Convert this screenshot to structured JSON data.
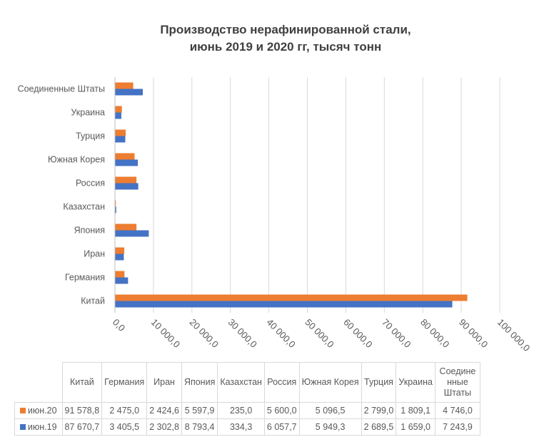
{
  "chart_data": {
    "type": "bar",
    "orientation": "horizontal",
    "title": "Производство нерафинированной стали, июнь 2019 и 2020 гг, тысяч тонн",
    "title_lines": [
      "Производство нерафинированной стали,",
      "июнь 2019 и 2020 гг, тысяч тонн"
    ],
    "categories": [
      "Китай",
      "Германия",
      "Иран",
      "Япония",
      "Казахстан",
      "Россия",
      "Южная Корея",
      "Турция",
      "Украина",
      "Соединенные Штаты"
    ],
    "table_headers": [
      "Китай",
      "Германия",
      "Иран",
      "Япония",
      "Казахстан",
      "Россия",
      "Южная Корея",
      "Турция",
      "Украина",
      "Соедине нные Штаты"
    ],
    "series": [
      {
        "name": "июн.20",
        "color": "#ed7d31",
        "values": [
          91578.8,
          2475.0,
          2424.6,
          5597.9,
          235.0,
          5600.0,
          5096.5,
          2799.0,
          1809.1,
          4746.0
        ],
        "labels": [
          "91 578,8",
          "2 475,0",
          "2 424,6",
          "5 597,9",
          "235,0",
          "5 600,0",
          "5 096,5",
          "2 799,0",
          "1 809,1",
          "4 746,0"
        ]
      },
      {
        "name": "июн.19",
        "color": "#4472c4",
        "values": [
          87670.7,
          3405.5,
          2302.8,
          8793.4,
          334.3,
          6057.7,
          5949.3,
          2689.5,
          1659.0,
          7243.9
        ],
        "labels": [
          "87 670,7",
          "3 405,5",
          "2 302,8",
          "8 793,4",
          "334,3",
          "6 057,7",
          "5 949,3",
          "2 689,5",
          "1 659,0",
          "7 243,9"
        ]
      }
    ],
    "xlim": [
      0,
      100000
    ],
    "xticks": [
      0,
      10000,
      20000,
      30000,
      40000,
      50000,
      60000,
      70000,
      80000,
      90000,
      100000
    ],
    "xtick_labels": [
      "0,0",
      "10 000,0",
      "20 000,0",
      "30 000,0",
      "40 000,0",
      "50 000,0",
      "60 000,0",
      "70 000,0",
      "80 000,0",
      "90 000,0",
      "100 000,0"
    ],
    "grid": true,
    "legend": "data-table"
  }
}
